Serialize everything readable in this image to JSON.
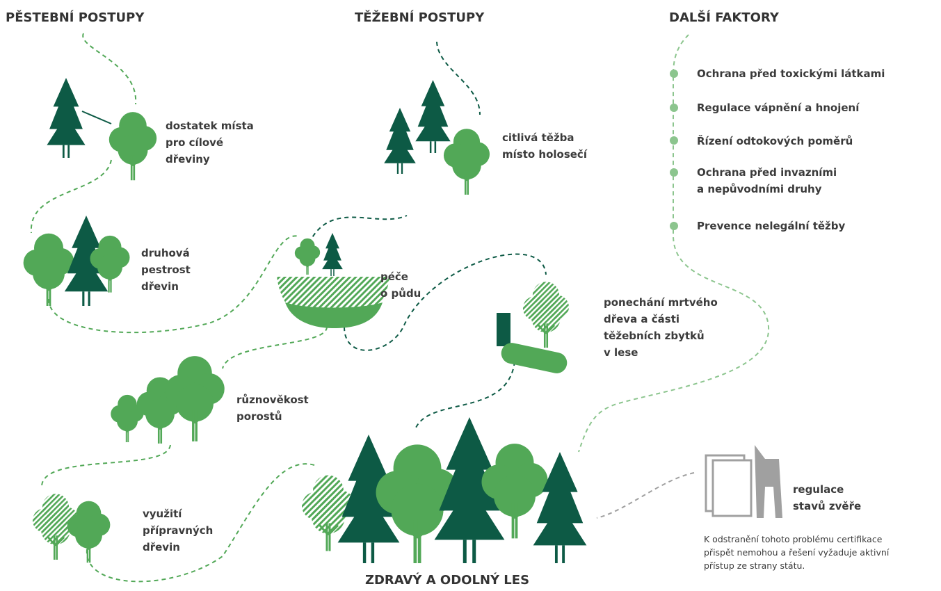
{
  "headers": [
    "PĚSTEBNÍ POSTUPY",
    "TĚŽEBNÍ POSTUPY",
    "DALŠÍ FAKTORY"
  ],
  "practices": [
    {
      "lines": [
        "dostatek místa",
        "pro cílové",
        "dřeviny"
      ]
    },
    {
      "lines": [
        "citlivá těžba",
        "místo holosečí"
      ]
    },
    {
      "lines": [
        "druhová",
        "pestrost",
        "dřevin"
      ]
    },
    {
      "lines": [
        "péče",
        "o půdu"
      ]
    },
    {
      "lines": [
        "ponechání mrtvého",
        "dřeva a části",
        "těžebních zbytků",
        "v lese"
      ]
    },
    {
      "lines": [
        "různověkost",
        "porostů"
      ]
    },
    {
      "lines": [
        "využití",
        "přípravných",
        "dřevin"
      ]
    }
  ],
  "factors": [
    [
      "Ochrana před toxickými látkami"
    ],
    [
      "Regulace vápnění a hnojení"
    ],
    [
      "Řízení odtokových poměrů"
    ],
    [
      "Ochrana před invazními",
      "a nepůvodními druhy"
    ],
    [
      "Prevence nelegální těžby"
    ]
  ],
  "goal": "ZDRAVÝ A ODOLNÝ LES",
  "game": {
    "lines": [
      "regulace",
      "stavů zvěře"
    ],
    "note": [
      "K odstranění tohoto problému certifikace",
      "přispět nemohou a řešení vyžaduje aktivní",
      "přístup ze strany státu."
    ]
  }
}
